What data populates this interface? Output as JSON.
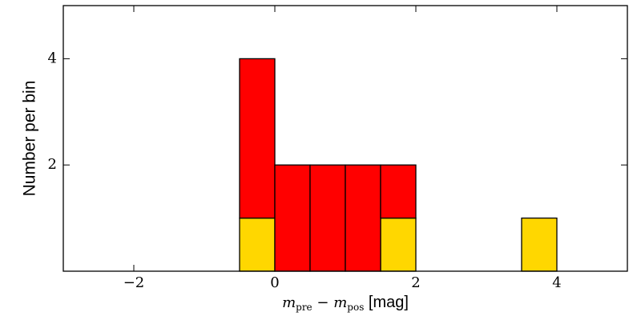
{
  "chart_data": {
    "type": "histogram",
    "ylabel": "Number per bin",
    "xlabel": [
      "m",
      "pre",
      " − ",
      "m",
      "pos",
      " [mag]"
    ],
    "bins": [
      -0.5,
      0,
      0.5,
      1,
      1.5,
      2,
      2.5,
      3,
      3.5,
      4
    ],
    "stacked": true,
    "series": [
      {
        "color": "#ffd700",
        "values": [
          1,
          0,
          0,
          0,
          1,
          0,
          0,
          0,
          1
        ]
      },
      {
        "color": "#ff0000",
        "values": [
          3,
          2,
          2,
          2,
          1,
          0,
          0,
          0,
          0
        ]
      }
    ],
    "xlim": [
      -3,
      5
    ],
    "ylim": [
      0,
      5
    ],
    "xticks": [
      {
        "value": -2,
        "label": "−2"
      },
      0,
      2,
      4
    ],
    "yticks": [
      2,
      4
    ]
  }
}
